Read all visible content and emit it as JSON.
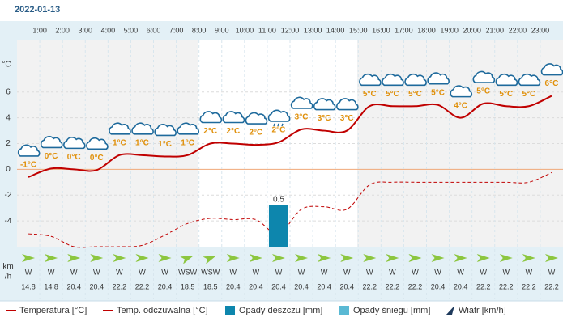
{
  "date": "2022-01-13",
  "chart_data": {
    "type": "line",
    "hour_labels": [
      "1:00",
      "2:00",
      "3:00",
      "4:00",
      "5:00",
      "6:00",
      "7:00",
      "8:00",
      "9:00",
      "10:00",
      "11:00",
      "12:00",
      "13:00",
      "14:00",
      "15:00",
      "16:00",
      "17:00",
      "18:00",
      "19:00",
      "20:00",
      "21:00",
      "22:00",
      "23:00"
    ],
    "y_unit": "°C",
    "ylim": [
      -6,
      10
    ],
    "yticks": [
      -4,
      -2,
      0,
      2,
      4,
      6
    ],
    "y2lim": [
      0,
      2.5
    ],
    "series": [
      {
        "name": "Temperatura [°C]",
        "color": "#c00000",
        "values": [
          -0.6,
          0.06,
          0,
          -0.06,
          1.1,
          1.1,
          1.0,
          1.1,
          2.0,
          2.0,
          1.9,
          2.1,
          3.1,
          3.0,
          3.0,
          4.9,
          4.9,
          4.9,
          5.0,
          4.0,
          5.1,
          4.9,
          4.9,
          5.7
        ],
        "value_labels": [
          "-1°C",
          "0°C",
          "0°C",
          "0°C",
          "1°C",
          "1°C",
          "1°C",
          "1°C",
          "2°C",
          "2°C",
          "2°C",
          "2°C",
          "3°C",
          "3°C",
          "3°C",
          "5°C",
          "5°C",
          "5°C",
          "5°C",
          "4°C",
          "5°C",
          "5°C",
          "5°C",
          "6°C"
        ]
      },
      {
        "name": "Temp. odczuwalna [°C]",
        "color": "#c00000",
        "dash": true,
        "values": [
          -5.0,
          -5.2,
          -6.0,
          -6.0,
          -6.0,
          -5.9,
          -5.1,
          -4.2,
          -3.8,
          -3.9,
          -3.9,
          -5.0,
          -3.1,
          -2.9,
          -3.1,
          -1.2,
          -1.0,
          -1.0,
          -1.0,
          -1.0,
          -1.0,
          -1.0,
          -1.0,
          -0.25
        ]
      },
      {
        "name": "Opady deszczu [mm]",
        "color": "#0d86ad",
        "type": "bar",
        "axis": "y2",
        "values": [
          0,
          0,
          0,
          0,
          0,
          0,
          0,
          0,
          0,
          0,
          0,
          0.5,
          0,
          0,
          0,
          0,
          0,
          0,
          0,
          0,
          0,
          0,
          0,
          0
        ],
        "value_labels": [
          null,
          null,
          null,
          null,
          null,
          null,
          null,
          null,
          null,
          null,
          null,
          "0.5",
          null,
          null,
          null,
          null,
          null,
          null,
          null,
          null,
          null,
          null,
          null,
          null
        ]
      },
      {
        "name": "Opady śniegu [mm]",
        "color": "#5ab9d4",
        "type": "bar",
        "axis": "y2",
        "values": [
          0,
          0,
          0,
          0,
          0,
          0,
          0,
          0,
          0,
          0,
          0,
          0,
          0,
          0,
          0,
          0,
          0,
          0,
          0,
          0,
          0,
          0,
          0,
          0
        ]
      }
    ],
    "wind": {
      "name": "Wiatr [km/h]",
      "unit_lines": [
        "km",
        "/h"
      ],
      "directions": [
        "W",
        "W",
        "W",
        "W",
        "W",
        "W",
        "W",
        "WSW",
        "WSW",
        "W",
        "W",
        "W",
        "W",
        "W",
        "W",
        "W",
        "W",
        "W",
        "W",
        "W",
        "W",
        "W",
        "W",
        "W"
      ],
      "speeds": [
        14.8,
        14.8,
        20.4,
        20.4,
        22.2,
        22.2,
        20.4,
        18.5,
        18.5,
        20.4,
        20.4,
        20.4,
        20.4,
        20.4,
        20.4,
        22.2,
        22.2,
        22.2,
        20.4,
        20.4,
        22.2,
        22.2,
        22.2,
        22.2
      ]
    }
  }
}
